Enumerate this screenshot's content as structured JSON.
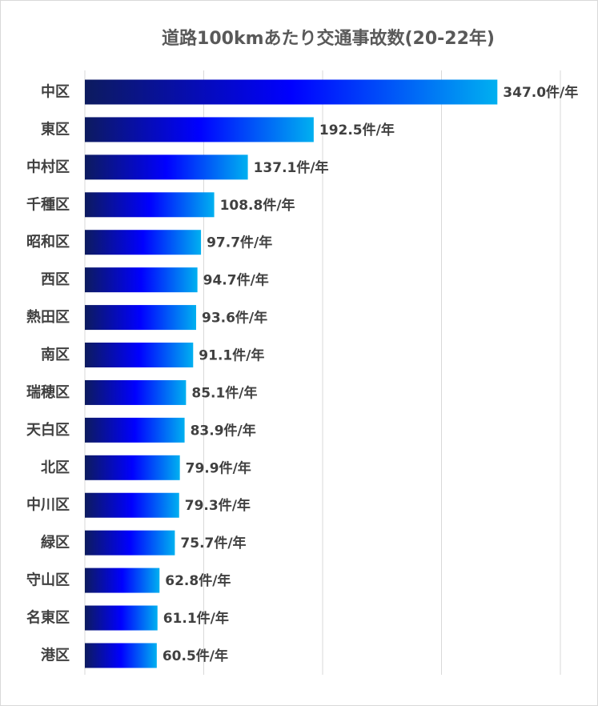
{
  "chart_data": {
    "type": "bar",
    "orientation": "horizontal",
    "title": "道路100kmあたり交通事故数(20-22年)",
    "value_suffix": "件/年",
    "categories": [
      "中区",
      "東区",
      "中村区",
      "千種区",
      "昭和区",
      "西区",
      "熱田区",
      "南区",
      "瑞穂区",
      "天白区",
      "北区",
      "中川区",
      "緑区",
      "守山区",
      "名東区",
      "港区"
    ],
    "values": [
      347.0,
      192.5,
      137.1,
      108.8,
      97.7,
      94.7,
      93.6,
      91.1,
      85.1,
      83.9,
      79.9,
      79.3,
      75.7,
      62.8,
      61.1,
      60.5
    ],
    "value_labels": [
      "347.0件/年",
      "192.5件/年",
      "137.1件/年",
      "108.8件/年",
      "97.7件/年",
      "94.7件/年",
      "93.6件/年",
      "91.1件/年",
      "85.1件/年",
      "83.9件/年",
      "79.9件/年",
      "79.3件/年",
      "75.7件/年",
      "62.8件/年",
      "61.1件/年",
      "60.5件/年"
    ],
    "xlim": [
      0,
      400
    ],
    "gridlines": [
      0,
      100,
      200,
      300,
      400
    ],
    "grid": true,
    "legend": "none",
    "colors": {
      "bar_gradient_start": "#0d1b5e",
      "bar_gradient_mid": "#0000ff",
      "bar_gradient_end": "#00b0f0",
      "grid": "#d9d9d9",
      "text": "#404040",
      "title": "#595959"
    }
  }
}
